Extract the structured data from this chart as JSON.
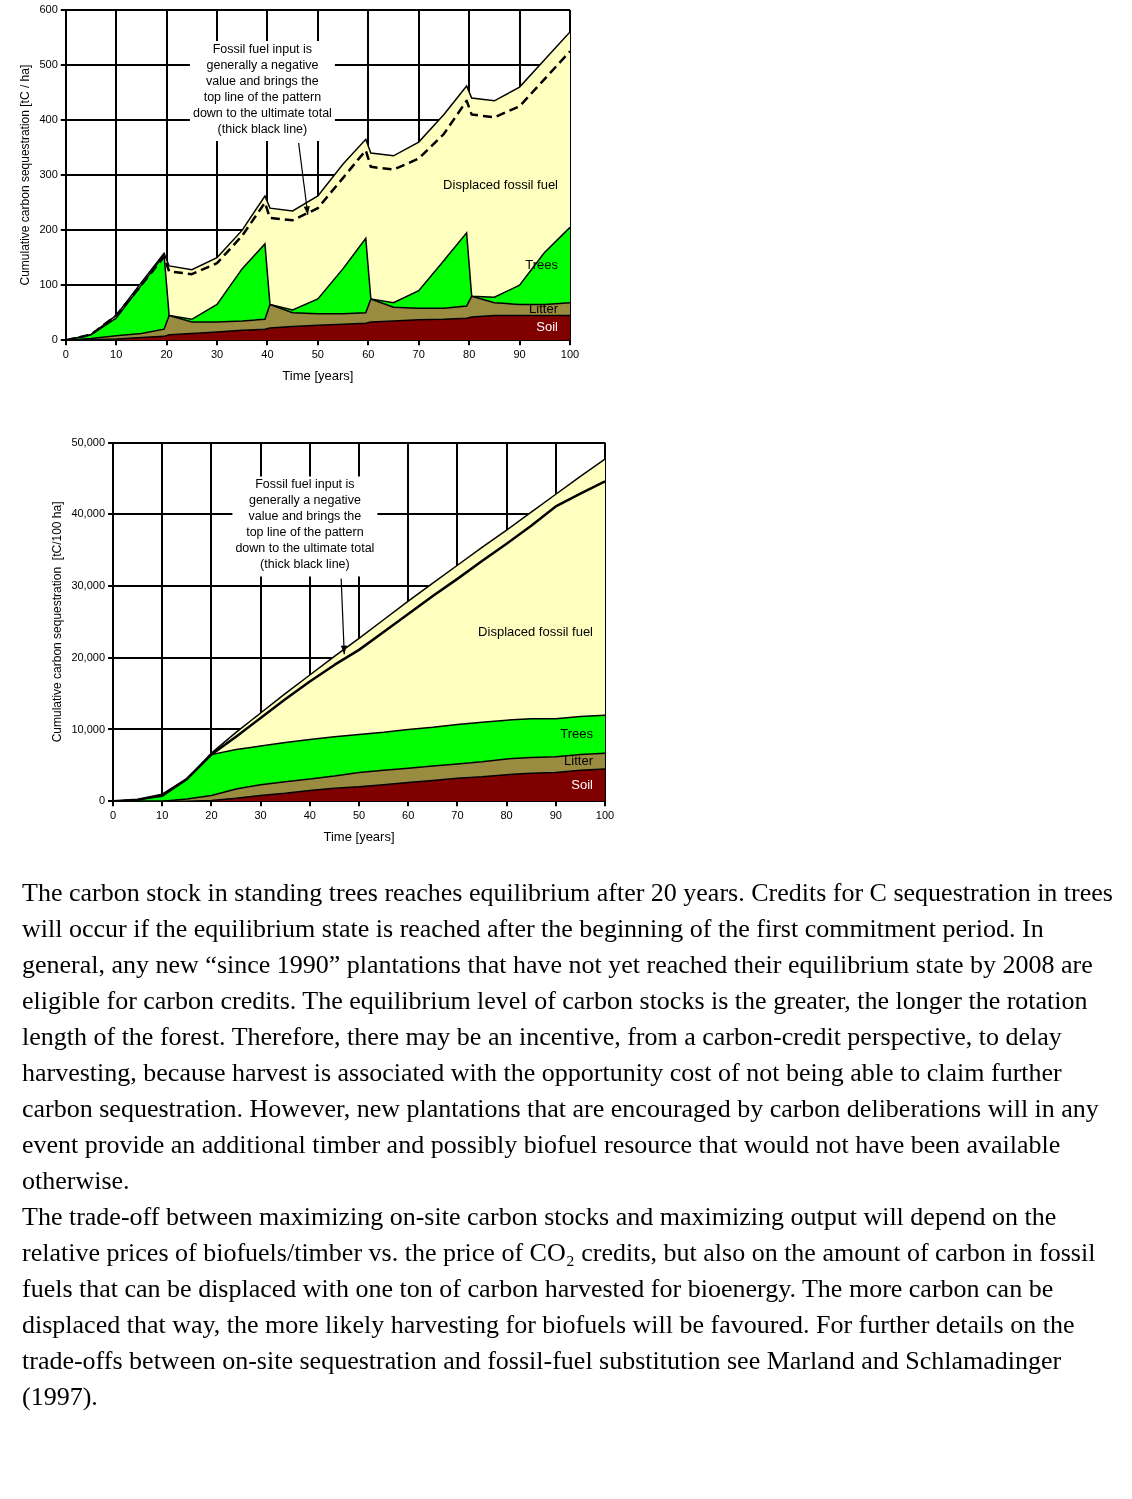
{
  "chart_data": [
    {
      "type": "area",
      "stacked": true,
      "xlabel": "Time [years]",
      "ylabel": "Cumulative carbon sequestration [tC / ha]",
      "xlim": [
        0,
        100
      ],
      "xticks": [
        0,
        10,
        20,
        30,
        40,
        50,
        60,
        70,
        80,
        90,
        100
      ],
      "ylim": [
        0,
        600
      ],
      "yticks": [
        0,
        100,
        200,
        300,
        400,
        500,
        600
      ],
      "grid": true,
      "legend": false,
      "x": [
        0,
        5,
        10,
        15,
        19.5,
        20.5,
        25,
        30,
        35,
        39.5,
        40.5,
        45,
        50,
        55,
        59.5,
        60.5,
        65,
        70,
        75,
        79.5,
        80.5,
        85,
        90,
        95,
        100
      ],
      "series": [
        {
          "name": "Soil",
          "color": "#800000",
          "values": [
            0,
            1,
            2,
            5,
            7,
            10,
            12,
            15,
            18,
            20,
            22,
            25,
            27,
            29,
            31,
            33,
            35,
            37,
            38,
            40,
            42,
            45,
            45,
            45,
            45
          ]
        },
        {
          "name": "Litter",
          "color": "#998c40",
          "values": [
            0,
            2,
            6,
            7,
            13,
            35,
            21,
            18,
            17,
            18,
            43,
            25,
            21,
            19,
            19,
            42,
            25,
            21,
            20,
            22,
            38,
            23,
            20,
            20,
            23
          ]
        },
        {
          "name": "Trees",
          "color": "#00ff00",
          "values": [
            0,
            7,
            32,
            88,
            135,
            0,
            5,
            32,
            95,
            137,
            0,
            5,
            27,
            82,
            135,
            0,
            8,
            32,
            87,
            133,
            0,
            10,
            35,
            95,
            137
          ]
        },
        {
          "name": "Displaced fossil fuel",
          "color": "#ffffc0",
          "values": [
            0,
            0,
            5,
            5,
            3,
            90,
            90,
            85,
            70,
            87,
            175,
            180,
            187,
            190,
            180,
            265,
            267,
            270,
            265,
            267,
            360,
            357,
            360,
            350,
            355
          ]
        },
        {
          "type": "line",
          "color": "#000000",
          "line_style": "dashed",
          "values": [
            0,
            10,
            45,
            100,
            152,
            125,
            120,
            140,
            190,
            250,
            222,
            218,
            240,
            295,
            345,
            315,
            310,
            330,
            375,
            435,
            410,
            405,
            425,
            475,
            525
          ]
        }
      ],
      "annotations": [
        {
          "text": "Fossil fuel input is\ngenerally a negative\nvalue and brings the\ntop line of the pattern\ndown to the ultimate total\n(thick black line)",
          "x": 48,
          "y": 228
        }
      ]
    },
    {
      "type": "area",
      "stacked": true,
      "xlabel": "Time [years]",
      "ylabel": "Cumulative carbon sequestration  [tC/100 ha]",
      "xlim": [
        0,
        100
      ],
      "xticks": [
        0,
        10,
        20,
        30,
        40,
        50,
        60,
        70,
        80,
        90,
        100
      ],
      "ylim": [
        0,
        50000
      ],
      "yticks": [
        0,
        {
          "value": 10000,
          "label": "10,000"
        },
        {
          "value": 20000,
          "label": "20,000"
        },
        {
          "value": 30000,
          "label": "30,000"
        },
        {
          "value": 40000,
          "label": "40,000"
        },
        {
          "value": 50000,
          "label": "50,000"
        }
      ],
      "grid": true,
      "legend": false,
      "x": [
        0,
        5,
        10,
        15,
        20,
        25,
        30,
        35,
        40,
        45,
        50,
        55,
        60,
        65,
        70,
        75,
        80,
        85,
        90,
        95,
        100
      ],
      "series": [
        {
          "name": "Soil",
          "color": "#800000",
          "values": [
            0,
            0,
            0,
            0,
            100,
            400,
            800,
            1100,
            1500,
            1800,
            2000,
            2300,
            2600,
            2900,
            3200,
            3400,
            3700,
            3900,
            4000,
            4300,
            4500
          ]
        },
        {
          "name": "Litter",
          "color": "#998c40",
          "values": [
            0,
            0,
            0,
            300,
            700,
            1300,
            1500,
            1600,
            1600,
            1700,
            2000,
            2000,
            2000,
            2000,
            2000,
            2100,
            2200,
            2200,
            2200,
            2200,
            2200
          ]
        },
        {
          "name": "Trees",
          "color": "#00ff00",
          "values": [
            0,
            200,
            700,
            2700,
            5700,
            5500,
            5400,
            5500,
            5500,
            5500,
            5300,
            5300,
            5400,
            5400,
            5500,
            5500,
            5400,
            5400,
            5300,
            5300,
            5300
          ]
        },
        {
          "name": "Displaced fossil fuel",
          "color": "#ffffc0",
          "values": [
            0,
            0,
            200,
            100,
            200,
            2400,
            4600,
            6800,
            9000,
            11200,
            13400,
            15700,
            17900,
            20100,
            22200,
            24400,
            26500,
            28800,
            31300,
            33500,
            35700
          ]
        },
        {
          "type": "line",
          "color": "#000000",
          "line_style": "solid",
          "values": [
            0,
            200,
            900,
            3100,
            6500,
            9000,
            11600,
            14200,
            16700,
            19000,
            21100,
            23600,
            26100,
            28600,
            31000,
            33500,
            35900,
            38400,
            41100,
            42900,
            44600
          ]
        }
      ],
      "annotations": [
        {
          "text": "Fossil fuel input is\ngenerally a negative\nvalue and brings the\ntop line of the pattern\ndown to the ultimate total\n(thick black line)",
          "x": 47,
          "y": 20500
        }
      ]
    },
    {
      "type": "other",
      "annotations": [
        "The carbon stock in standing trees reaches equilibrium after 20 years. Credits for C sequestration in trees will occur if the equilibrium state is reached after the beginning of the first commitment period. In general, any new “since 1990” plantations that have not yet reached their equilibrium state by 2008 are eligible for carbon credits. The equilibrium level of carbon stocks is the greater, the longer the rotation length of the forest. Therefore, there may be an incentive, from a carbon-credit perspective, to delay harvesting, because harvest is associated with the opportunity cost of not being able to claim further carbon sequestration. However, new plantations that are encouraged by carbon deliberations will in any event provide an additional timber and possibly biofuel resource that would not have been available otherwise.",
        "The trade-off between maximizing on-site carbon stocks and maximizing output will depend on the relative prices of biofuels/timber vs. the price of CO₂ credits, but also on the amount of carbon in fossil fuels that can be displaced with one ton of carbon harvested for bioenergy. The more carbon can be displaced that way, the more likely harvesting for biofuels will be favoured. For further details on the trade-offs between on-site sequestration and fossil-fuel substitution see Marland and Schlamadinger (1997)."
      ]
    }
  ]
}
